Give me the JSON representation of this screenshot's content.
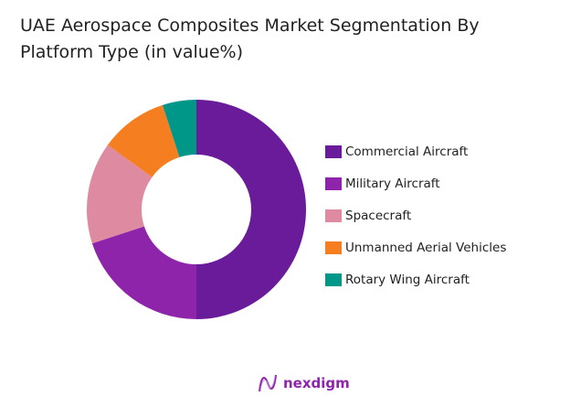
{
  "chart_data": {
    "type": "pie",
    "donut": true,
    "title": " UAE Aerospace Composites Market Segmentation By Platform Type (in value%)",
    "categories": [
      "Commercial Aircraft",
      "Military Aircraft",
      "Spacecraft",
      "Unmanned Aerial Vehicles",
      "Rotary Wing Aircraft"
    ],
    "values": [
      50,
      20,
      15,
      10,
      5
    ],
    "colors": [
      "#6a1b9a",
      "#8e24aa",
      "#de8aa0",
      "#f57f20",
      "#009688"
    ],
    "legend_position": "right"
  },
  "logo": {
    "text": "nexdigm"
  }
}
